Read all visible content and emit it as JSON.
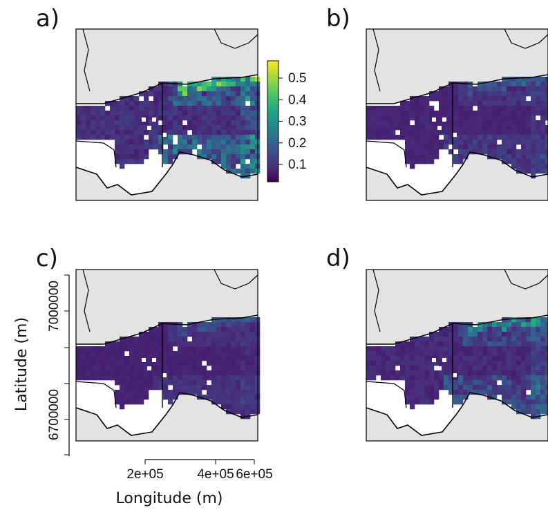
{
  "chart_data": {
    "type": "heatmap",
    "xlabel": "Longitude (m)",
    "ylabel": "Latitude (m)",
    "x_ticks": [
      "2e+05",
      "4e+05",
      "6e+05"
    ],
    "y_ticks": [
      "6700000",
      "7000000"
    ],
    "colorbar": {
      "palette": "viridis",
      "ticks": [
        "0.1",
        "0.2",
        "0.3",
        "0.4",
        "0.5"
      ],
      "range": [
        0.02,
        0.58
      ]
    },
    "panels": [
      {
        "label": "a)",
        "intensity": 1.0
      },
      {
        "label": "b)",
        "intensity": 0.35
      },
      {
        "label": "c)",
        "intensity": 0.25
      },
      {
        "label": "d)",
        "intensity": 0.65
      }
    ]
  },
  "colors": {
    "land": "#e3e3e3",
    "sea_background": "#ffffff",
    "coastline": "#000000",
    "palette": [
      "#440154",
      "#472d7b",
      "#3b528b",
      "#2c728e",
      "#21918c",
      "#28ae80",
      "#5ec962",
      "#addc30",
      "#fde725"
    ]
  }
}
